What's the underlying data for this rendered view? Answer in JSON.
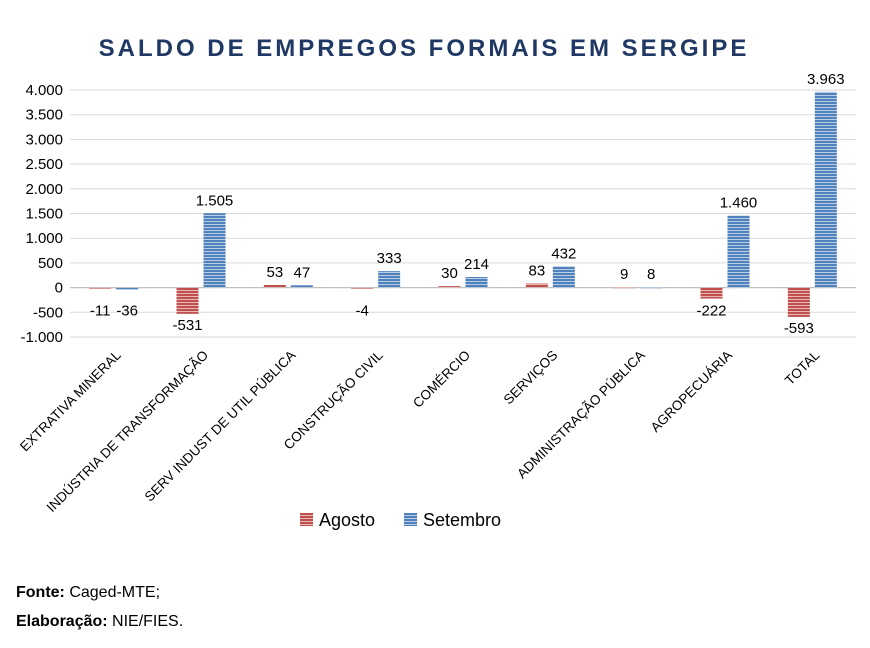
{
  "colors": {
    "agosto": "#c0504d",
    "setembro": "#4f81bd",
    "title": "#1f3864"
  },
  "chart_data": {
    "type": "bar",
    "title": "SALDO DE EMPREGOS FORMAIS EM SERGIPE",
    "categories": [
      "EXTRATIVA MINERAL",
      "INDÚSTRIA DE TRANSFORMAÇÃO",
      "SERV INDUST DE UTIL PÚBLICA",
      "CONSTRUÇÃO CIVIL",
      "COMÉRCIO",
      "SERVIÇOS",
      "ADMINISTRAÇÃO PÚBLICA",
      "AGROPECUÁRIA",
      "TOTAL"
    ],
    "series": [
      {
        "name": "Agosto",
        "values": [
          -11,
          -531,
          53,
          -4,
          30,
          83,
          9,
          -222,
          -593
        ],
        "labels": [
          "-11",
          "-531",
          "53",
          "-4",
          "30",
          "83",
          "9",
          "-222",
          "-593"
        ]
      },
      {
        "name": "Setembro",
        "values": [
          -36,
          1505,
          47,
          333,
          214,
          432,
          8,
          1460,
          3963
        ],
        "labels": [
          "-36",
          "1.505",
          "47",
          "333",
          "214",
          "432",
          "8",
          "1.460",
          "3.963"
        ]
      }
    ],
    "ylim": [
      -1000,
      4000
    ],
    "yticks": [
      -1000,
      -500,
      0,
      500,
      1000,
      1500,
      2000,
      2500,
      3000,
      3500,
      4000
    ],
    "ytick_labels": [
      "-1.000",
      "-500",
      "0",
      "500",
      "1.000",
      "1.500",
      "2.000",
      "2.500",
      "3.000",
      "3.500",
      "4.000"
    ],
    "grid": true,
    "legend": "bottom"
  },
  "footer": {
    "source_label": "Fonte:",
    "source_value": " Caged-MTE;",
    "credit_label": "Elaboração:",
    "credit_value": " NIE/FIES."
  }
}
